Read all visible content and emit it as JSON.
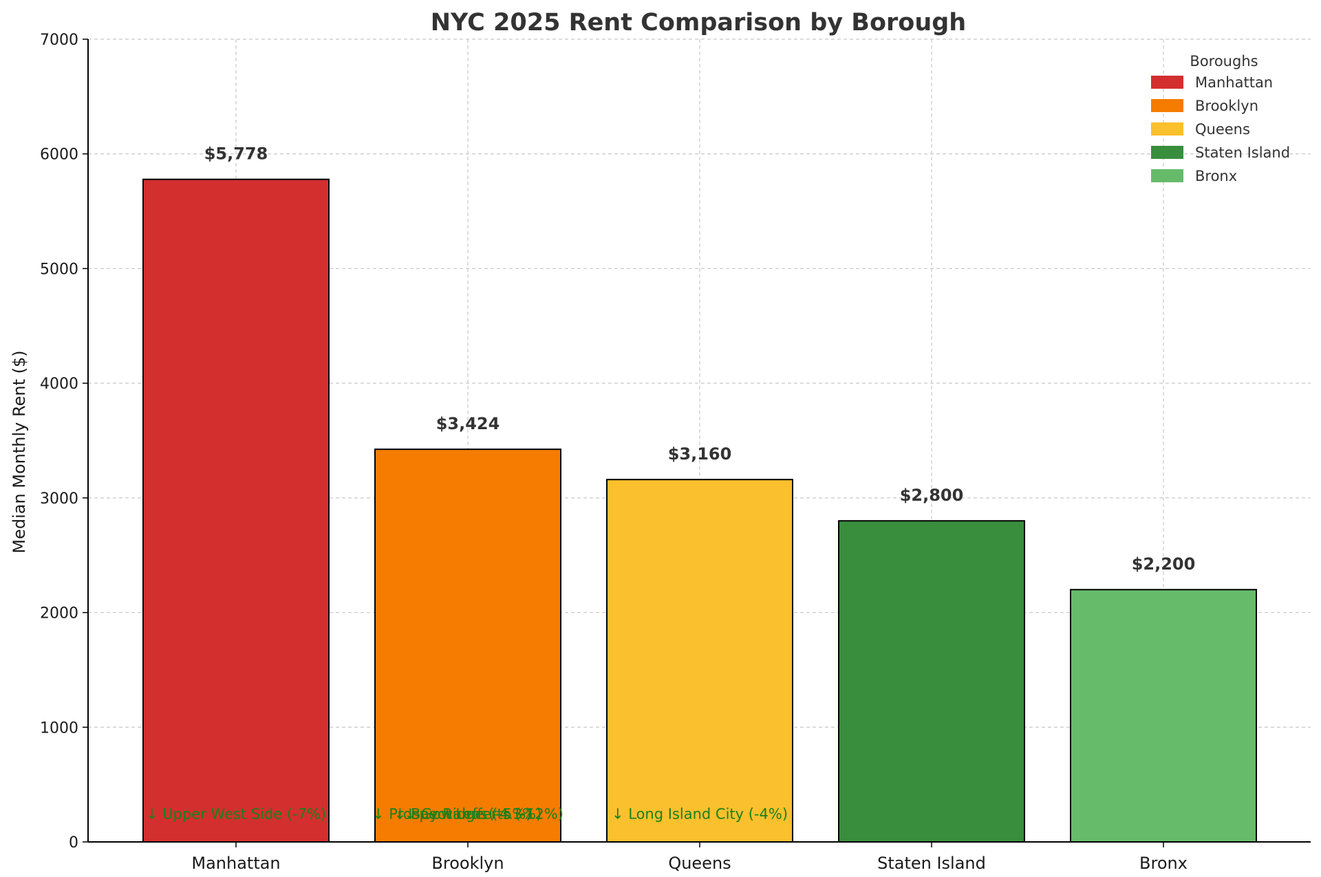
{
  "chart_data": {
    "type": "bar",
    "title": "NYC 2025 Rent Comparison by Borough",
    "xlabel": "",
    "ylabel": "Median Monthly Rent ($)",
    "ylim": [
      0,
      7000
    ],
    "yticks": [
      0,
      1000,
      2000,
      3000,
      4000,
      5000,
      6000,
      7000
    ],
    "grid": true,
    "legend_title": "Boroughs",
    "legend_position": "top-right",
    "categories": [
      "Manhattan",
      "Brooklyn",
      "Queens",
      "Staten Island",
      "Bronx"
    ],
    "values": [
      5778,
      3424,
      3160,
      2800,
      2200
    ],
    "value_labels": [
      "$5,778",
      "$3,424",
      "$3,160",
      "$2,800",
      "$2,200"
    ],
    "colors": [
      "#d32f2f",
      "#f57c00",
      "#fbc02d",
      "#388e3c",
      "#66bb6a"
    ],
    "annotation_y": 250,
    "annotations": [
      {
        "category": "Manhattan",
        "text": "↓ Upper West Side (-7%)"
      },
      {
        "category": "Brooklyn",
        "text": "↓ Prospect Lefferts (-12%)"
      },
      {
        "category": "Brooklyn",
        "text": "↓ Bay Ridge (-4.3%)"
      },
      {
        "category": "Brooklyn",
        "text": "↓ Gowanus (-5%)"
      },
      {
        "category": "Queens",
        "text": "↓ Long Island City (-4%)"
      }
    ]
  }
}
